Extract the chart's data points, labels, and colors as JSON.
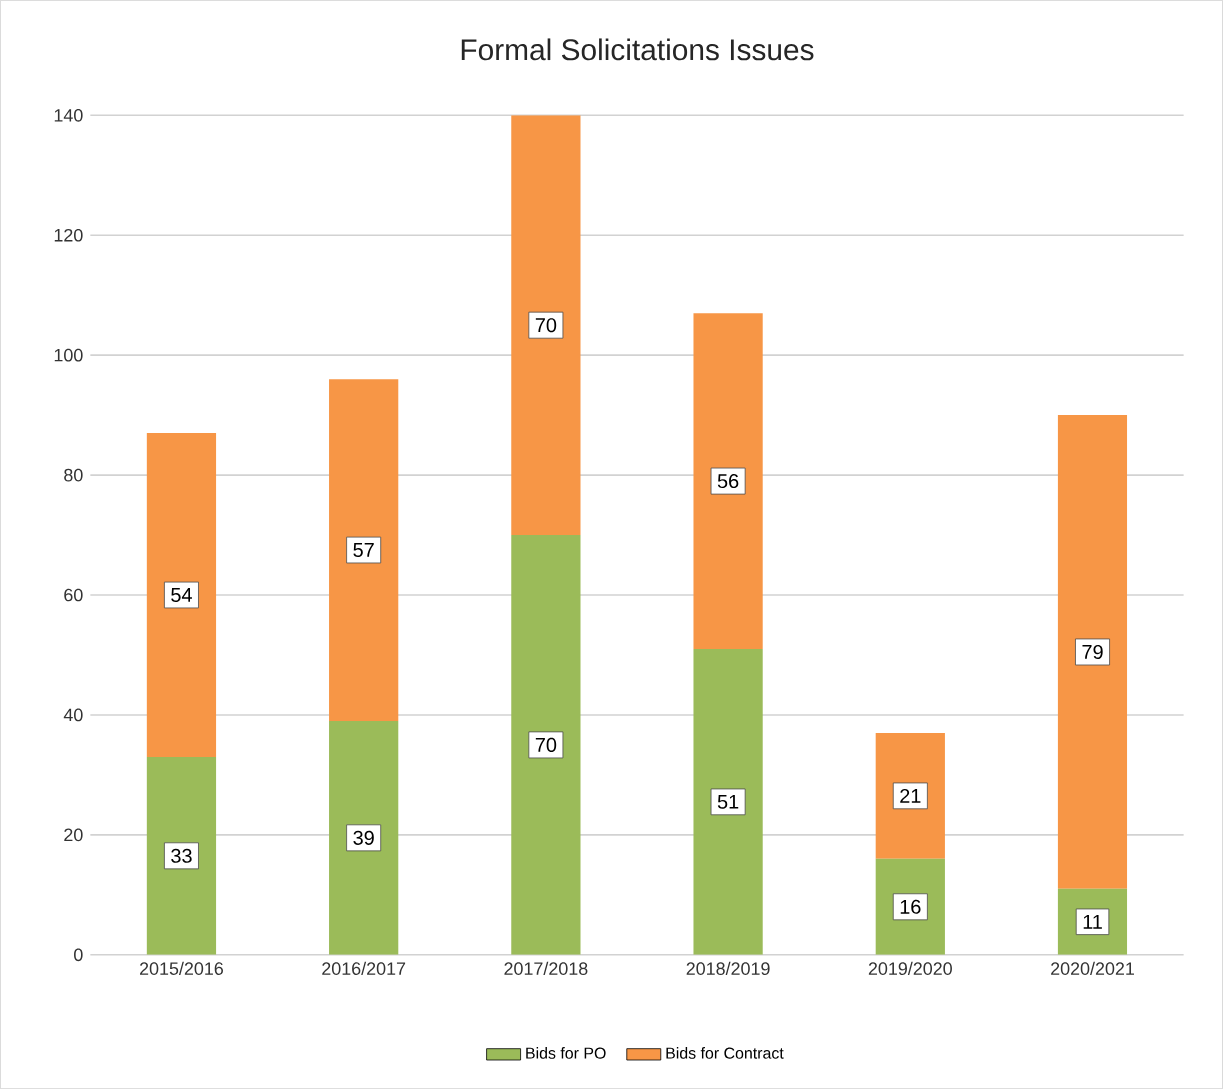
{
  "chart_data": {
    "type": "bar",
    "title": "Formal Solicitations Issues",
    "stacked": true,
    "categories": [
      "2015/2016",
      "2016/2017",
      "2017/2018",
      "2018/2019",
      "2019/2020",
      "2020/2021"
    ],
    "series": [
      {
        "name": "Bids for PO",
        "color": "#9bbb59",
        "values": [
          33,
          39,
          70,
          51,
          16,
          11
        ]
      },
      {
        "name": "Bids for Contract",
        "color": "#f79646",
        "values": [
          54,
          57,
          70,
          56,
          21,
          79
        ]
      }
    ],
    "ylim": [
      0,
      140
    ],
    "yticks": [
      0,
      20,
      40,
      60,
      80,
      100,
      120,
      140
    ],
    "grid": "y",
    "legend": "bottom",
    "data_labels": true
  }
}
